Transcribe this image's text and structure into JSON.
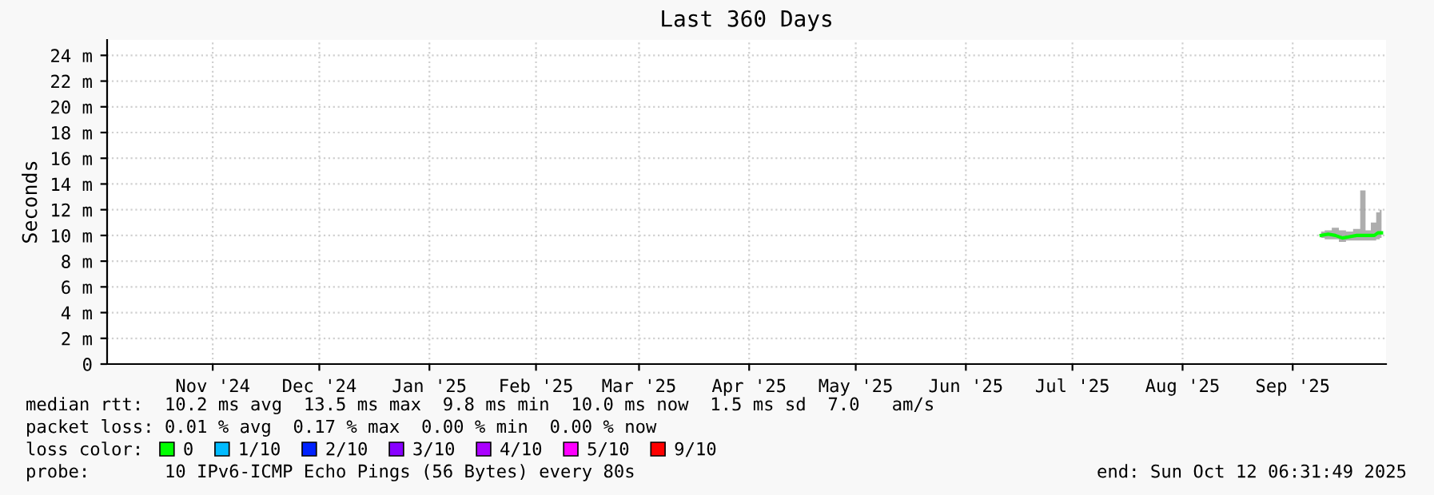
{
  "chart_data": {
    "type": "line",
    "title": "Last 360 Days",
    "ylabel": "Seconds",
    "x": [
      "2025-09-24",
      "2025-09-26",
      "2025-09-28",
      "2025-09-30",
      "2025-10-02",
      "2025-10-04",
      "2025-10-06",
      "2025-10-07",
      "2025-10-09",
      "2025-10-10",
      "2025-10-11"
    ],
    "series": [
      {
        "name": "0",
        "color": "#00ff00",
        "values": [
          10.0,
          10.1,
          10.0,
          9.8,
          9.9,
          10.0,
          10.0,
          10.0,
          10.0,
          10.2,
          10.2
        ],
        "lower": [
          9.8,
          9.7,
          9.7,
          9.5,
          9.6,
          9.6,
          9.6,
          9.6,
          9.6,
          9.7,
          9.8
        ],
        "upper": [
          10.3,
          10.4,
          10.6,
          10.4,
          10.3,
          10.5,
          13.5,
          10.4,
          11.0,
          11.8,
          12.0
        ]
      },
      {
        "name": "1/10",
        "color": "#00bbff",
        "values": [
          null,
          null,
          null,
          null,
          null,
          null,
          null,
          null,
          null,
          null,
          null
        ]
      },
      {
        "name": "2/10",
        "color": "#0022ff",
        "values": [
          null,
          null,
          null,
          null,
          null,
          null,
          null,
          null,
          null,
          null,
          null
        ]
      },
      {
        "name": "3/10",
        "color": "#8800ff",
        "values": [
          null,
          null,
          null,
          null,
          null,
          null,
          null,
          null,
          null,
          null,
          null
        ]
      },
      {
        "name": "4/10",
        "color": "#aa00ff",
        "values": [
          null,
          null,
          null,
          null,
          null,
          null,
          null,
          null,
          null,
          null,
          null
        ]
      },
      {
        "name": "5/10",
        "color": "#ff00ff",
        "values": [
          null,
          null,
          null,
          null,
          null,
          null,
          null,
          null,
          null,
          null,
          null
        ]
      },
      {
        "name": "9/10",
        "color": "#ff0000",
        "values": [
          null,
          null,
          null,
          null,
          null,
          null,
          null,
          null,
          null,
          null,
          null
        ]
      }
    ],
    "xlim": [
      "2024-10-17T06:31",
      "2025-10-12T06:31"
    ],
    "xticks": [
      {
        "value": "2024-11-16",
        "label": "Nov '24"
      },
      {
        "value": "2024-12-16",
        "label": "Dec '24"
      },
      {
        "value": "2025-01-16",
        "label": "Jan '25"
      },
      {
        "value": "2025-02-15",
        "label": "Feb '25"
      },
      {
        "value": "2025-03-16",
        "label": "Mar '25"
      },
      {
        "value": "2025-04-16",
        "label": "Apr '25"
      },
      {
        "value": "2025-05-16",
        "label": "May '25"
      },
      {
        "value": "2025-06-16",
        "label": "Jun '25"
      },
      {
        "value": "2025-07-16",
        "label": "Jul '25"
      },
      {
        "value": "2025-08-16",
        "label": "Aug '25"
      },
      {
        "value": "2025-09-16",
        "label": "Sep '25"
      }
    ],
    "ylim": [
      0,
      25.2
    ],
    "yticks": [
      0,
      {
        "value": 2,
        "label": "2 m"
      },
      {
        "value": 4,
        "label": "4 m"
      },
      {
        "value": 6,
        "label": "6 m"
      },
      {
        "value": 8,
        "label": "8 m"
      },
      {
        "value": 10,
        "label": "10 m"
      },
      {
        "value": 12,
        "label": "12 m"
      },
      {
        "value": 14,
        "label": "14 m"
      },
      {
        "value": 16,
        "label": "16 m"
      },
      {
        "value": 18,
        "label": "18 m"
      },
      {
        "value": 20,
        "label": "20 m"
      },
      {
        "value": 22,
        "label": "22 m"
      },
      {
        "value": 24,
        "label": "24 m"
      }
    ],
    "grid": true,
    "legend": "bottom",
    "marker": "none",
    "line_style": "solid",
    "annotations": [
      "median rtt:  10.2 ms avg  13.5 ms max  9.8 ms min  10.0 ms now  1.5 ms sd  7.0   am/s",
      "packet loss: 0.01 % avg  0.17 % max  0.00 % min  0.00 % now",
      "loss color:",
      "probe:       10 IPv6-ICMP Echo Pings (56 Bytes) every 80s",
      "end: Sun Oct 12 06:31:49 2025"
    ]
  }
}
